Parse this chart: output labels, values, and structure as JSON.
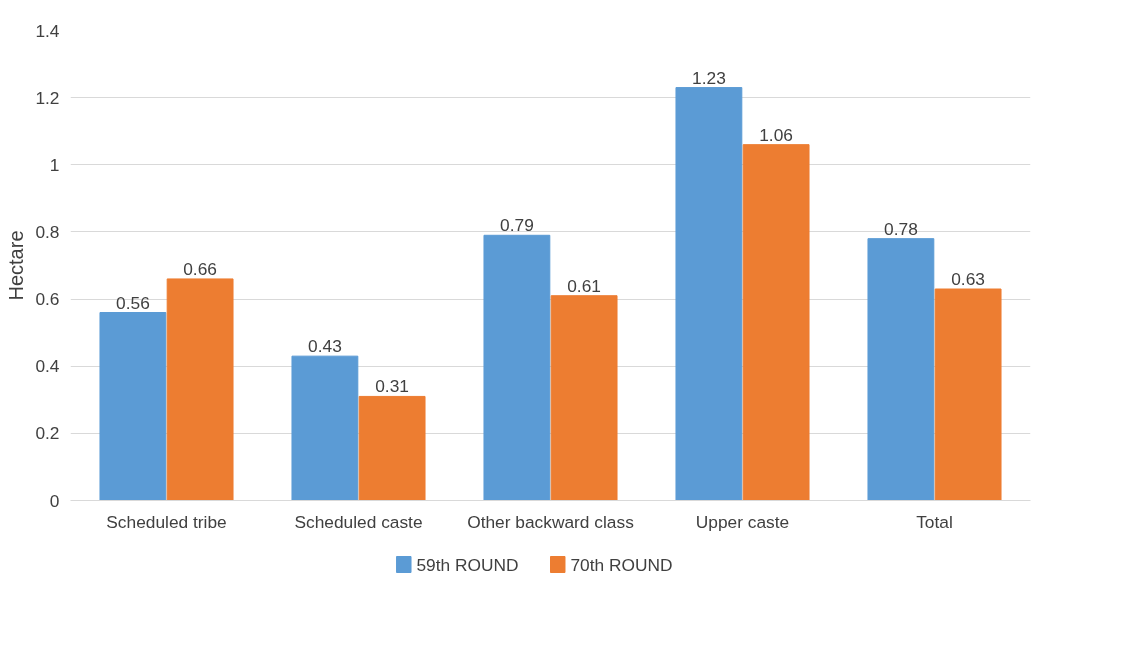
{
  "chart_data": {
    "type": "bar",
    "ylabel": "Hectare",
    "categories": [
      "Scheduled tribe",
      "Scheduled caste",
      "Other backward class",
      "Upper caste",
      "Total"
    ],
    "series": [
      {
        "name": "59th ROUND",
        "color": "#5b9bd5",
        "values": [
          0.56,
          0.43,
          0.79,
          1.23,
          0.78
        ]
      },
      {
        "name": "70th ROUND",
        "color": "#ed7d31",
        "values": [
          0.66,
          0.31,
          0.61,
          1.06,
          0.63
        ]
      }
    ],
    "ylim": [
      0,
      1.4
    ],
    "yticks": [
      0,
      0.2,
      0.4,
      0.6,
      0.8,
      1,
      1.2,
      1.4
    ],
    "grid": "y",
    "legend": "bottom",
    "data_labels": true
  }
}
